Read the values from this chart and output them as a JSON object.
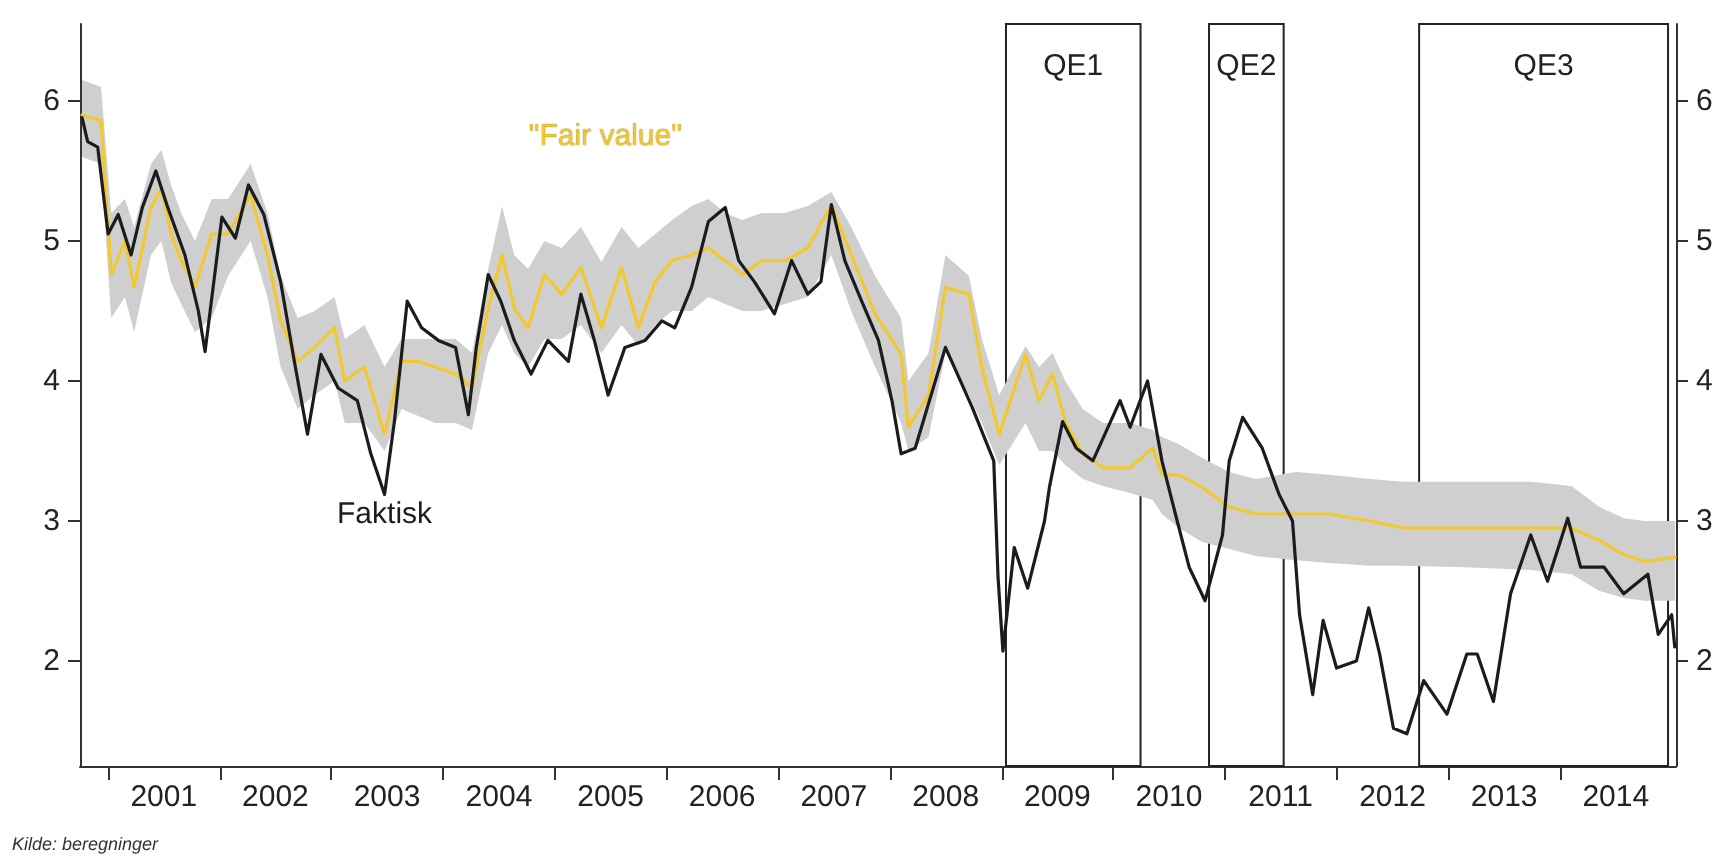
{
  "chart_data": {
    "type": "line",
    "legend": false,
    "grid": false,
    "marker": "none",
    "line_style": "solid",
    "xlim": [
      "2000-10-01",
      "2015-01-15"
    ],
    "xticks": [
      {
        "value": "2001-01-01",
        "label": null
      },
      {
        "value": "2002-01-01",
        "label": null
      },
      {
        "value": "2003-01-01",
        "label": null
      },
      {
        "value": "2004-01-01",
        "label": null
      },
      {
        "value": "2005-01-01",
        "label": null
      },
      {
        "value": "2006-01-01",
        "label": null
      },
      {
        "value": "2007-01-01",
        "label": null
      },
      {
        "value": "2008-01-01",
        "label": null
      },
      {
        "value": "2009-01-01",
        "label": null
      },
      {
        "value": "2010-01-01",
        "label": null
      },
      {
        "value": "2011-01-01",
        "label": null
      },
      {
        "value": "2012-01-01",
        "label": null
      },
      {
        "value": "2013-01-01",
        "label": null
      },
      {
        "value": "2014-01-01",
        "label": null
      },
      {
        "value": "2001-07-02",
        "label": "2001"
      },
      {
        "value": "2002-07-02",
        "label": "2002"
      },
      {
        "value": "2003-07-02",
        "label": "2003"
      },
      {
        "value": "2004-07-02",
        "label": "2004"
      },
      {
        "value": "2005-07-02",
        "label": "2005"
      },
      {
        "value": "2006-07-02",
        "label": "2006"
      },
      {
        "value": "2007-07-02",
        "label": "2007"
      },
      {
        "value": "2008-07-02",
        "label": "2008"
      },
      {
        "value": "2009-07-02",
        "label": "2009"
      },
      {
        "value": "2010-07-02",
        "label": "2010"
      },
      {
        "value": "2011-07-02",
        "label": "2011"
      },
      {
        "value": "2012-07-02",
        "label": "2012"
      },
      {
        "value": "2013-07-02",
        "label": "2013"
      },
      {
        "value": "2014-07-02",
        "label": "2014"
      }
    ],
    "ylim": [
      1.25,
      6.55
    ],
    "yticks": [
      2,
      3,
      4,
      5,
      6
    ],
    "y2lim": [
      1.25,
      6.55
    ],
    "y2ticks": [
      2,
      3,
      4,
      5,
      6
    ],
    "bands": [
      {
        "axis": "x",
        "from": "2009-01-15",
        "to": "2010-03-31",
        "label": "QE1",
        "color": "#ffffff"
      },
      {
        "axis": "x",
        "from": "2010-11-10",
        "to": "2011-07-12",
        "label": "QE2",
        "color": "#ffffff"
      },
      {
        "axis": "x",
        "from": "2012-09-27",
        "to": "2014-12-20",
        "label": "QE3",
        "color": "#ffffff"
      }
    ],
    "annotations": [
      "Kilde: beregninger"
    ],
    "series": [
      {
        "name": "\"Fair value\"",
        "color": "#f2c830",
        "x": [
          "2000-10-08",
          "2000-12-09",
          "2001-01-11",
          "2001-02-25",
          "2001-03-27",
          "2001-05-21",
          "2001-06-24",
          "2001-07-26",
          "2001-08-28",
          "2001-10-12",
          "2001-12-06",
          "2002-01-28",
          "2002-04-12",
          "2002-06-06",
          "2002-07-19",
          "2002-09-13",
          "2002-11-07",
          "2003-01-11",
          "2003-02-14",
          "2003-04-19",
          "2003-06-24",
          "2003-08-18",
          "2003-10-12",
          "2003-12-06",
          "2004-02-11",
          "2004-04-05",
          "2004-05-28",
          "2004-07-12",
          "2004-08-21",
          "2004-10-05",
          "2004-11-28",
          "2005-01-23",
          "2005-03-27",
          "2005-06-02",
          "2005-08-07",
          "2005-10-01",
          "2005-11-25",
          "2006-01-19",
          "2006-03-24",
          "2006-05-18",
          "2006-07-12",
          "2006-09-06",
          "2006-11-07",
          "2007-01-23",
          "2007-04-08",
          "2007-06-24",
          "2007-08-28",
          "2007-11-14",
          "2008-02-07",
          "2008-03-02",
          "2008-05-07",
          "2008-07-01",
          "2008-09-16",
          "2008-10-28",
          "2008-12-24",
          "2009-03-20",
          "2009-05-03",
          "2009-06-16",
          "2009-07-28",
          "2009-09-23",
          "2009-11-28",
          "2010-02-25",
          "2010-05-10",
          "2010-06-09",
          "2010-08-03",
          "2010-10-19",
          "2011-01-15",
          "2011-04-12",
          "2011-08-21",
          "2011-12-09",
          "2012-04-19",
          "2012-08-07",
          "2013-02-21",
          "2013-09-27",
          "2014-02-07",
          "2014-05-10",
          "2014-07-28",
          "2014-10-05",
          "2015-01-12"
        ],
        "values": [
          5.9,
          5.86,
          4.76,
          5.0,
          4.67,
          5.24,
          5.38,
          5.05,
          4.86,
          4.67,
          5.05,
          5.05,
          5.33,
          4.9,
          4.43,
          4.14,
          4.24,
          4.38,
          4.0,
          4.1,
          3.62,
          4.14,
          4.14,
          4.1,
          4.05,
          3.95,
          4.52,
          4.9,
          4.52,
          4.38,
          4.76,
          4.62,
          4.81,
          4.38,
          4.81,
          4.38,
          4.71,
          4.86,
          4.9,
          4.95,
          4.86,
          4.76,
          4.86,
          4.86,
          4.95,
          5.26,
          4.9,
          4.48,
          4.19,
          3.67,
          3.9,
          4.67,
          4.62,
          4.1,
          3.62,
          4.19,
          3.86,
          4.05,
          3.71,
          3.48,
          3.38,
          3.38,
          3.52,
          3.33,
          3.33,
          3.24,
          3.1,
          3.05,
          3.05,
          3.05,
          3.0,
          2.95,
          2.95,
          2.95,
          2.95,
          2.86,
          2.76,
          2.71,
          2.74
        ],
        "lower": [
          5.6,
          5.55,
          4.45,
          4.6,
          4.35,
          4.9,
          5.0,
          4.7,
          4.55,
          4.35,
          4.45,
          4.75,
          5.0,
          4.6,
          4.1,
          3.8,
          3.9,
          4.0,
          3.7,
          3.7,
          3.5,
          3.8,
          3.75,
          3.7,
          3.7,
          3.65,
          4.2,
          4.4,
          4.2,
          4.1,
          4.3,
          4.3,
          4.4,
          4.2,
          4.4,
          4.25,
          4.4,
          4.5,
          4.5,
          4.6,
          4.55,
          4.5,
          4.5,
          4.55,
          4.6,
          4.9,
          4.5,
          4.1,
          3.7,
          3.5,
          3.6,
          4.2,
          3.9,
          3.7,
          3.4,
          3.7,
          3.5,
          3.5,
          3.4,
          3.3,
          3.25,
          3.2,
          3.15,
          3.05,
          2.95,
          2.85,
          2.8,
          2.75,
          2.72,
          2.7,
          2.68,
          2.68,
          2.67,
          2.65,
          2.62,
          2.5,
          2.45,
          2.43,
          2.43
        ],
        "upper": [
          6.15,
          6.1,
          5.2,
          5.3,
          5.1,
          5.55,
          5.65,
          5.4,
          5.2,
          5.0,
          5.3,
          5.3,
          5.55,
          5.2,
          4.75,
          4.45,
          4.5,
          4.6,
          4.3,
          4.4,
          4.1,
          4.3,
          4.3,
          4.3,
          4.3,
          4.2,
          4.8,
          5.25,
          4.9,
          4.8,
          5.0,
          4.95,
          5.1,
          4.85,
          5.1,
          4.95,
          5.05,
          5.15,
          5.25,
          5.3,
          5.2,
          5.15,
          5.2,
          5.2,
          5.25,
          5.35,
          5.1,
          4.75,
          4.45,
          4.0,
          4.2,
          4.9,
          4.75,
          4.3,
          3.9,
          4.25,
          4.1,
          4.2,
          4.0,
          3.8,
          3.7,
          3.7,
          3.65,
          3.6,
          3.55,
          3.45,
          3.35,
          3.3,
          3.35,
          3.33,
          3.3,
          3.28,
          3.28,
          3.28,
          3.25,
          3.1,
          3.02,
          3.0,
          3.0
        ]
      },
      {
        "name": "Faktisk",
        "color": "#1c1c1c",
        "x": [
          "2000-10-08",
          "2000-10-26",
          "2000-11-28",
          "2001-01-01",
          "2001-02-03",
          "2001-03-17",
          "2001-04-23",
          "2001-06-06",
          "2001-07-15",
          "2001-09-09",
          "2001-10-23",
          "2001-11-14",
          "2002-01-08",
          "2002-02-21",
          "2002-04-05",
          "2002-05-25",
          "2002-07-19",
          "2002-09-02",
          "2002-10-15",
          "2002-11-28",
          "2003-01-23",
          "2003-03-27",
          "2003-05-10",
          "2003-06-24",
          "2003-07-26",
          "2003-09-06",
          "2003-10-23",
          "2003-12-17",
          "2004-02-11",
          "2004-03-24",
          "2004-04-19",
          "2004-05-28",
          "2004-07-08",
          "2004-08-21",
          "2004-10-15",
          "2004-12-09",
          "2005-02-14",
          "2005-03-27",
          "2005-05-10",
          "2005-06-24",
          "2005-08-18",
          "2005-10-23",
          "2005-12-17",
          "2006-01-28",
          "2006-03-24",
          "2006-05-18",
          "2006-07-12",
          "2006-08-25",
          "2006-10-15",
          "2006-12-20",
          "2007-02-14",
          "2007-04-08",
          "2007-05-21",
          "2007-06-24",
          "2007-08-07",
          "2007-10-01",
          "2007-11-25",
          "2008-01-08",
          "2008-02-07",
          "2008-03-24",
          "2008-07-01",
          "2008-09-27",
          "2008-12-06",
          "2008-12-20",
          "2009-01-05",
          "2009-02-11",
          "2009-03-27",
          "2009-05-21",
          "2009-06-06",
          "2009-07-19",
          "2009-09-02",
          "2009-10-26",
          "2010-01-23",
          "2010-02-25",
          "2010-04-23",
          "2010-06-09",
          "2010-07-23",
          "2010-09-06",
          "2010-10-28",
          "2010-12-24",
          "2011-01-15",
          "2011-02-28",
          "2011-05-03",
          "2011-06-27",
          "2011-08-10",
          "2011-09-02",
          "2011-10-15",
          "2011-11-18",
          "2012-01-01",
          "2012-03-06",
          "2012-04-15",
          "2012-05-21",
          "2012-07-05",
          "2012-08-18",
          "2012-10-12",
          "2012-12-27",
          "2013-03-02",
          "2013-04-05",
          "2013-05-28",
          "2013-07-23",
          "2013-09-27",
          "2013-11-21",
          "2014-01-26",
          "2014-03-09",
          "2014-05-25",
          "2014-07-28",
          "2014-10-15",
          "2014-11-18",
          "2015-01-01",
          "2015-01-11"
        ],
        "values": [
          5.88,
          5.71,
          5.67,
          5.05,
          5.19,
          4.9,
          5.24,
          5.5,
          5.24,
          4.9,
          4.5,
          4.21,
          5.17,
          5.02,
          5.4,
          5.19,
          4.71,
          4.14,
          3.62,
          4.19,
          3.95,
          3.86,
          3.48,
          3.19,
          3.71,
          4.57,
          4.38,
          4.29,
          4.24,
          3.76,
          4.24,
          4.76,
          4.57,
          4.29,
          4.05,
          4.29,
          4.14,
          4.62,
          4.29,
          3.9,
          4.24,
          4.29,
          4.43,
          4.38,
          4.67,
          5.14,
          5.24,
          4.86,
          4.71,
          4.48,
          4.86,
          4.62,
          4.71,
          5.26,
          4.86,
          4.57,
          4.29,
          3.86,
          3.48,
          3.52,
          4.24,
          3.81,
          3.43,
          2.6,
          2.07,
          2.81,
          2.52,
          3.0,
          3.24,
          3.71,
          3.52,
          3.43,
          3.86,
          3.67,
          4.0,
          3.43,
          3.05,
          2.67,
          2.43,
          2.9,
          3.43,
          3.74,
          3.52,
          3.19,
          3.0,
          2.33,
          1.76,
          2.29,
          1.95,
          2.0,
          2.38,
          2.05,
          1.52,
          1.48,
          1.86,
          1.62,
          2.05,
          2.05,
          1.71,
          2.48,
          2.9,
          2.57,
          3.02,
          2.67,
          2.67,
          2.48,
          2.62,
          2.19,
          2.33,
          2.1
        ]
      }
    ]
  }
}
